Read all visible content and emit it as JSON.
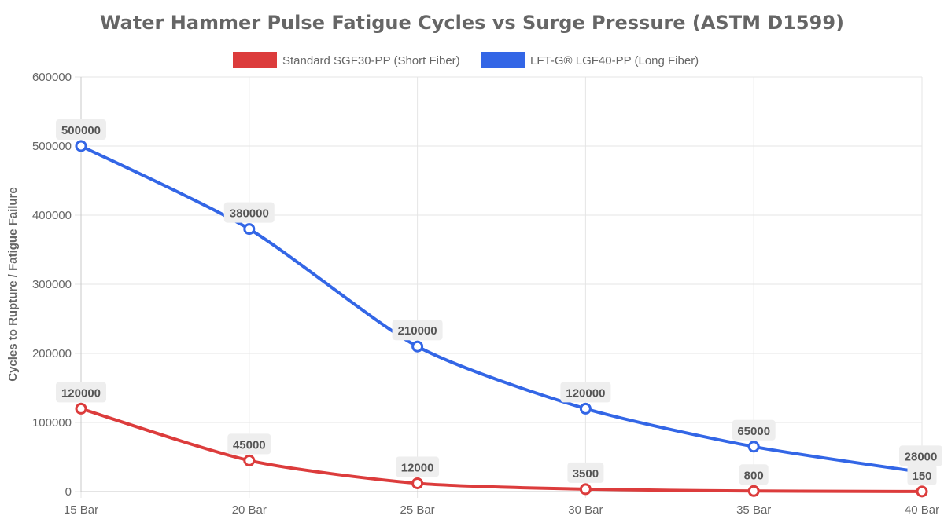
{
  "chart_data": {
    "type": "line",
    "title": "Water Hammer Pulse Fatigue Cycles vs Surge Pressure (ASTM D1599)",
    "xlabel": "",
    "ylabel": "Cycles to Rupture / Fatigue Failure",
    "categories": [
      "15 Bar",
      "20 Bar",
      "25 Bar",
      "30 Bar",
      "35 Bar",
      "40 Bar"
    ],
    "ylim": [
      0,
      600000
    ],
    "yticks": [
      0,
      100000,
      200000,
      300000,
      400000,
      500000,
      600000
    ],
    "grid": true,
    "legend_position": "top",
    "series": [
      {
        "name": "Standard SGF30-PP (Short Fiber)",
        "color": "#dc3c3c",
        "values": [
          120000,
          45000,
          12000,
          3500,
          800,
          150
        ]
      },
      {
        "name": "LFT-G® LGF40-PP (Long Fiber)",
        "color": "#3366e6",
        "values": [
          500000,
          380000,
          210000,
          120000,
          65000,
          28000
        ]
      }
    ]
  }
}
